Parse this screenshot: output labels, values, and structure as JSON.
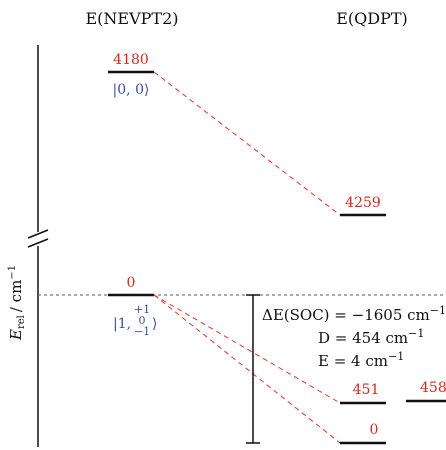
{
  "headers": {
    "left": "E(NEVPT2)",
    "right": "E(QDPT)"
  },
  "y_axis": {
    "label": "E_rel / cm^-1",
    "label_main": "E",
    "label_sub": "rel",
    "label_unit": "/ cm",
    "label_exp": "−1"
  },
  "levels": {
    "nevpt2_upper": {
      "value": "4180",
      "state": "|0, 0⟩"
    },
    "nevpt2_lower": {
      "value": "0",
      "state_prefix": "|1,",
      "ms_values": [
        "+1",
        "0",
        "−1"
      ],
      "state_suffix": "⟩"
    },
    "qdpt_upper": {
      "value": "4259"
    },
    "qdpt_mid": {
      "value": "451"
    },
    "qdpt_mid2": {
      "value": "458"
    },
    "qdpt_lower": {
      "value": "0"
    }
  },
  "parameters": {
    "soc": "ΔE(SOC) = −1605 cm",
    "soc_exp": "−1",
    "d": "D = 454 cm",
    "d_exp": "−1",
    "e": "E = 4 cm",
    "e_exp": "−1"
  },
  "colors": {
    "energy_label": "#d42a1e",
    "state_label": "#3a50a8",
    "connector": "#e0443a",
    "level": "#111111"
  }
}
